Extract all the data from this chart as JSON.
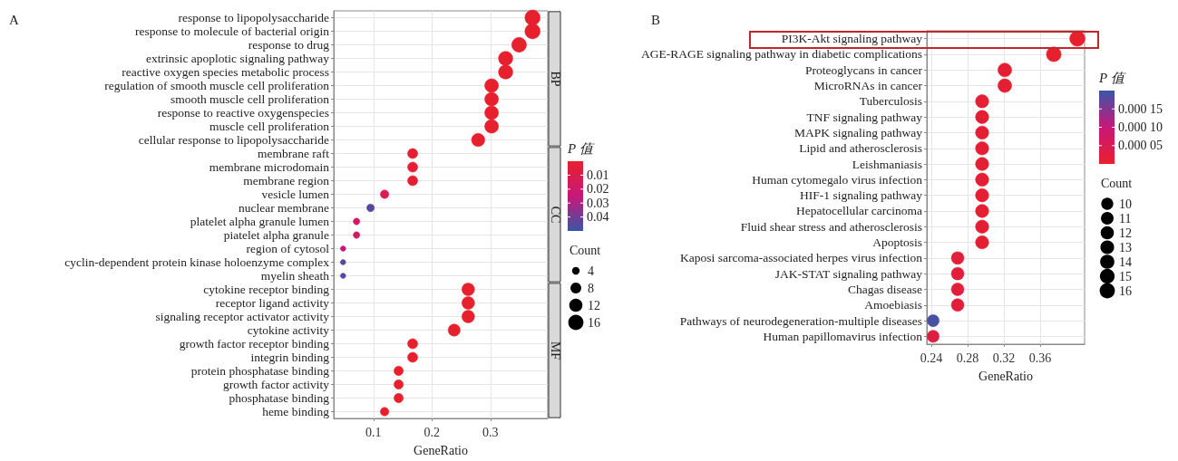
{
  "chart_data": [
    {
      "type": "bubble",
      "annotations": [
        "A"
      ],
      "xlabel": "GeneRatio",
      "orientation": "horizontal",
      "categories": [
        "response to lipopolysaccharide",
        "response to molecule of bacterial origin",
        "response to drug",
        "extrinsic apoplotic signaling pathway",
        "reactive oxygen species metabolic process",
        "regulation of smooth muscle cell proliferation",
        "smooth muscle cell proliferation",
        "response to reactive oxygenspecies",
        "muscle cell proliferation",
        "cellular response to lipopolysaccharide",
        "membrane raft",
        "membrane microdomain",
        "membrane region",
        "vesicle lumen",
        "nuclear membrane",
        "platelet alpha granule lumen",
        "piatelet alpha granule",
        "region of cytosol",
        "cyclin-dependent protein kinase holoenzyme complex",
        "myelin sheath",
        "cytokine receptor binding",
        "receptor ligand activity",
        "signaling receptor activator activity",
        "cytokine activity",
        "growth factor receptor binding",
        "integrin binding",
        "protein phosphatase binding",
        "growth factor activity",
        "phosphatase binding",
        "heme binding"
      ],
      "series": [
        {
          "name": "BP",
          "values": [
            0.372,
            0.372,
            0.349,
            0.326,
            0.326,
            0.302,
            0.302,
            0.302,
            0.302,
            0.279,
            null,
            null,
            null,
            null,
            null,
            null,
            null,
            null,
            null,
            null,
            null,
            null,
            null,
            null,
            null,
            null,
            null,
            null,
            null,
            null
          ],
          "sizes": [
            16,
            16,
            15,
            14,
            14,
            13,
            13,
            13,
            13,
            12,
            null,
            null,
            null,
            null,
            null,
            null,
            null,
            null,
            null,
            null,
            null,
            null,
            null,
            null,
            null,
            null,
            null,
            null,
            null,
            null
          ],
          "cvalues": [
            0.0005,
            0.0005,
            0.0005,
            0.0005,
            0.0005,
            0.0005,
            0.0005,
            0.0005,
            0.0005,
            0.0005,
            null,
            null,
            null,
            null,
            null,
            null,
            null,
            null,
            null,
            null,
            null,
            null,
            null,
            null,
            null,
            null,
            null,
            null,
            null,
            null
          ]
        },
        {
          "name": "CC",
          "values": [
            null,
            null,
            null,
            null,
            null,
            null,
            null,
            null,
            null,
            null,
            0.167,
            0.167,
            0.167,
            0.119,
            0.095,
            0.071,
            0.071,
            0.048,
            0.048,
            0.048,
            null,
            null,
            null,
            null,
            null,
            null,
            null,
            null,
            null,
            null
          ],
          "sizes": [
            null,
            null,
            null,
            null,
            null,
            null,
            null,
            null,
            null,
            null,
            7,
            7,
            7,
            5,
            4,
            3,
            3,
            2,
            2,
            2,
            null,
            null,
            null,
            null,
            null,
            null,
            null,
            null,
            null,
            null
          ],
          "cvalues": [
            null,
            null,
            null,
            null,
            null,
            null,
            null,
            null,
            null,
            null,
            0.002,
            0.002,
            0.002,
            0.012,
            0.045,
            0.018,
            0.018,
            0.025,
            0.045,
            0.046,
            null,
            null,
            null,
            null,
            null,
            null,
            null,
            null,
            null,
            null
          ],
          "colors": [
            null,
            null,
            null,
            null,
            null,
            null,
            null,
            null,
            null,
            null,
            "#e51f31",
            "#e51f31",
            "#e51f31",
            "#d91c51",
            "#56499d",
            "#d11a64",
            "#d11a64",
            "#c8177a",
            "#56499d",
            "#514c9f",
            null,
            null,
            null,
            null,
            null,
            null,
            null,
            null,
            null,
            null
          ]
        },
        {
          "name": "MF",
          "values": [
            null,
            null,
            null,
            null,
            null,
            null,
            null,
            null,
            null,
            null,
            null,
            null,
            null,
            null,
            null,
            null,
            null,
            null,
            null,
            null,
            0.262,
            0.262,
            0.262,
            0.238,
            0.167,
            0.167,
            0.143,
            0.143,
            0.143,
            0.119
          ],
          "sizes": [
            null,
            null,
            null,
            null,
            null,
            null,
            null,
            null,
            null,
            null,
            null,
            null,
            null,
            null,
            null,
            null,
            null,
            null,
            null,
            null,
            11,
            11,
            11,
            10,
            7,
            7,
            6,
            6,
            6,
            5
          ],
          "cvalues": [
            null,
            null,
            null,
            null,
            null,
            null,
            null,
            null,
            null,
            null,
            null,
            null,
            null,
            null,
            null,
            null,
            null,
            null,
            null,
            null,
            0.001,
            0.001,
            0.001,
            0.001,
            0.001,
            0.001,
            0.001,
            0.001,
            0.001,
            0.001
          ]
        }
      ],
      "clim": [
        0.05,
        0
      ],
      "cticks": [
        0.01,
        0.02,
        0.03,
        0.04
      ],
      "clabel": "P 值",
      "legend_title": "Count",
      "size_legend": [
        4,
        8,
        12,
        16
      ],
      "xlim": [
        0.032,
        0.398
      ],
      "xticks": [
        0.1,
        0.2,
        0.3
      ],
      "grid": true
    },
    {
      "type": "bubble",
      "annotations": [
        "B"
      ],
      "xlabel": "GeneRatio",
      "orientation": "horizontal",
      "categories": [
        "PI3K-Akt signaling pathway",
        "AGE-RAGE signaling pathway in diabetic complications",
        "Proteoglycans in cancer",
        "MicroRNAs in cancer",
        "Tuberculosis",
        "TNF signaling pathway",
        "MAPK signaling pathway",
        "Lipid and atherosclerosis",
        "Leishmaniasis",
        "Human cytomegalo virus infection",
        "HIF-1 signaling pathway",
        "Hepatocellular carcinoma",
        "Fluid shear stress and atherosclerosis",
        "Apoptosis",
        "Kaposi sarcoma-associated herpes virus infection",
        "JAK-STAT signaling pathway",
        "Chagas disease",
        "Amoebiasis",
        "Pathways of neurodegeneration-multiple diseases",
        "Human papillomavirus infection"
      ],
      "values": [
        0.401,
        0.375,
        0.321,
        0.321,
        0.296,
        0.296,
        0.296,
        0.296,
        0.296,
        0.296,
        0.296,
        0.296,
        0.296,
        0.296,
        0.269,
        0.269,
        0.269,
        0.269,
        0.242,
        0.242
      ],
      "sizes": [
        16,
        15,
        13,
        13,
        12,
        12,
        12,
        12,
        12,
        12,
        12,
        12,
        12,
        12,
        11,
        11,
        11,
        11,
        10,
        10
      ],
      "cvalues": [
        1e-06,
        3e-06,
        1e-05,
        1e-05,
        1e-05,
        1e-05,
        1e-05,
        1e-05,
        1e-05,
        1e-05,
        1e-05,
        1e-05,
        1e-05,
        1e-05,
        2e-05,
        2e-05,
        2e-05,
        2e-05,
        0.00019,
        3e-05
      ],
      "clim": [
        0,
        0.0002
      ],
      "cticks": [
        {
          "value": 0.00015,
          "label": "0.000 15"
        },
        {
          "value": 0.0001,
          "label": "0.000 10"
        },
        {
          "value": 5e-05,
          "label": "0.000 05"
        }
      ],
      "clabel": "P 值",
      "legend_title": "Count",
      "size_legend": [
        10,
        11,
        12,
        13,
        14,
        15,
        16
      ],
      "xlim": [
        0.235,
        0.409
      ],
      "xticks": [
        0.24,
        0.28,
        0.32,
        0.36
      ],
      "grid": true
    }
  ]
}
